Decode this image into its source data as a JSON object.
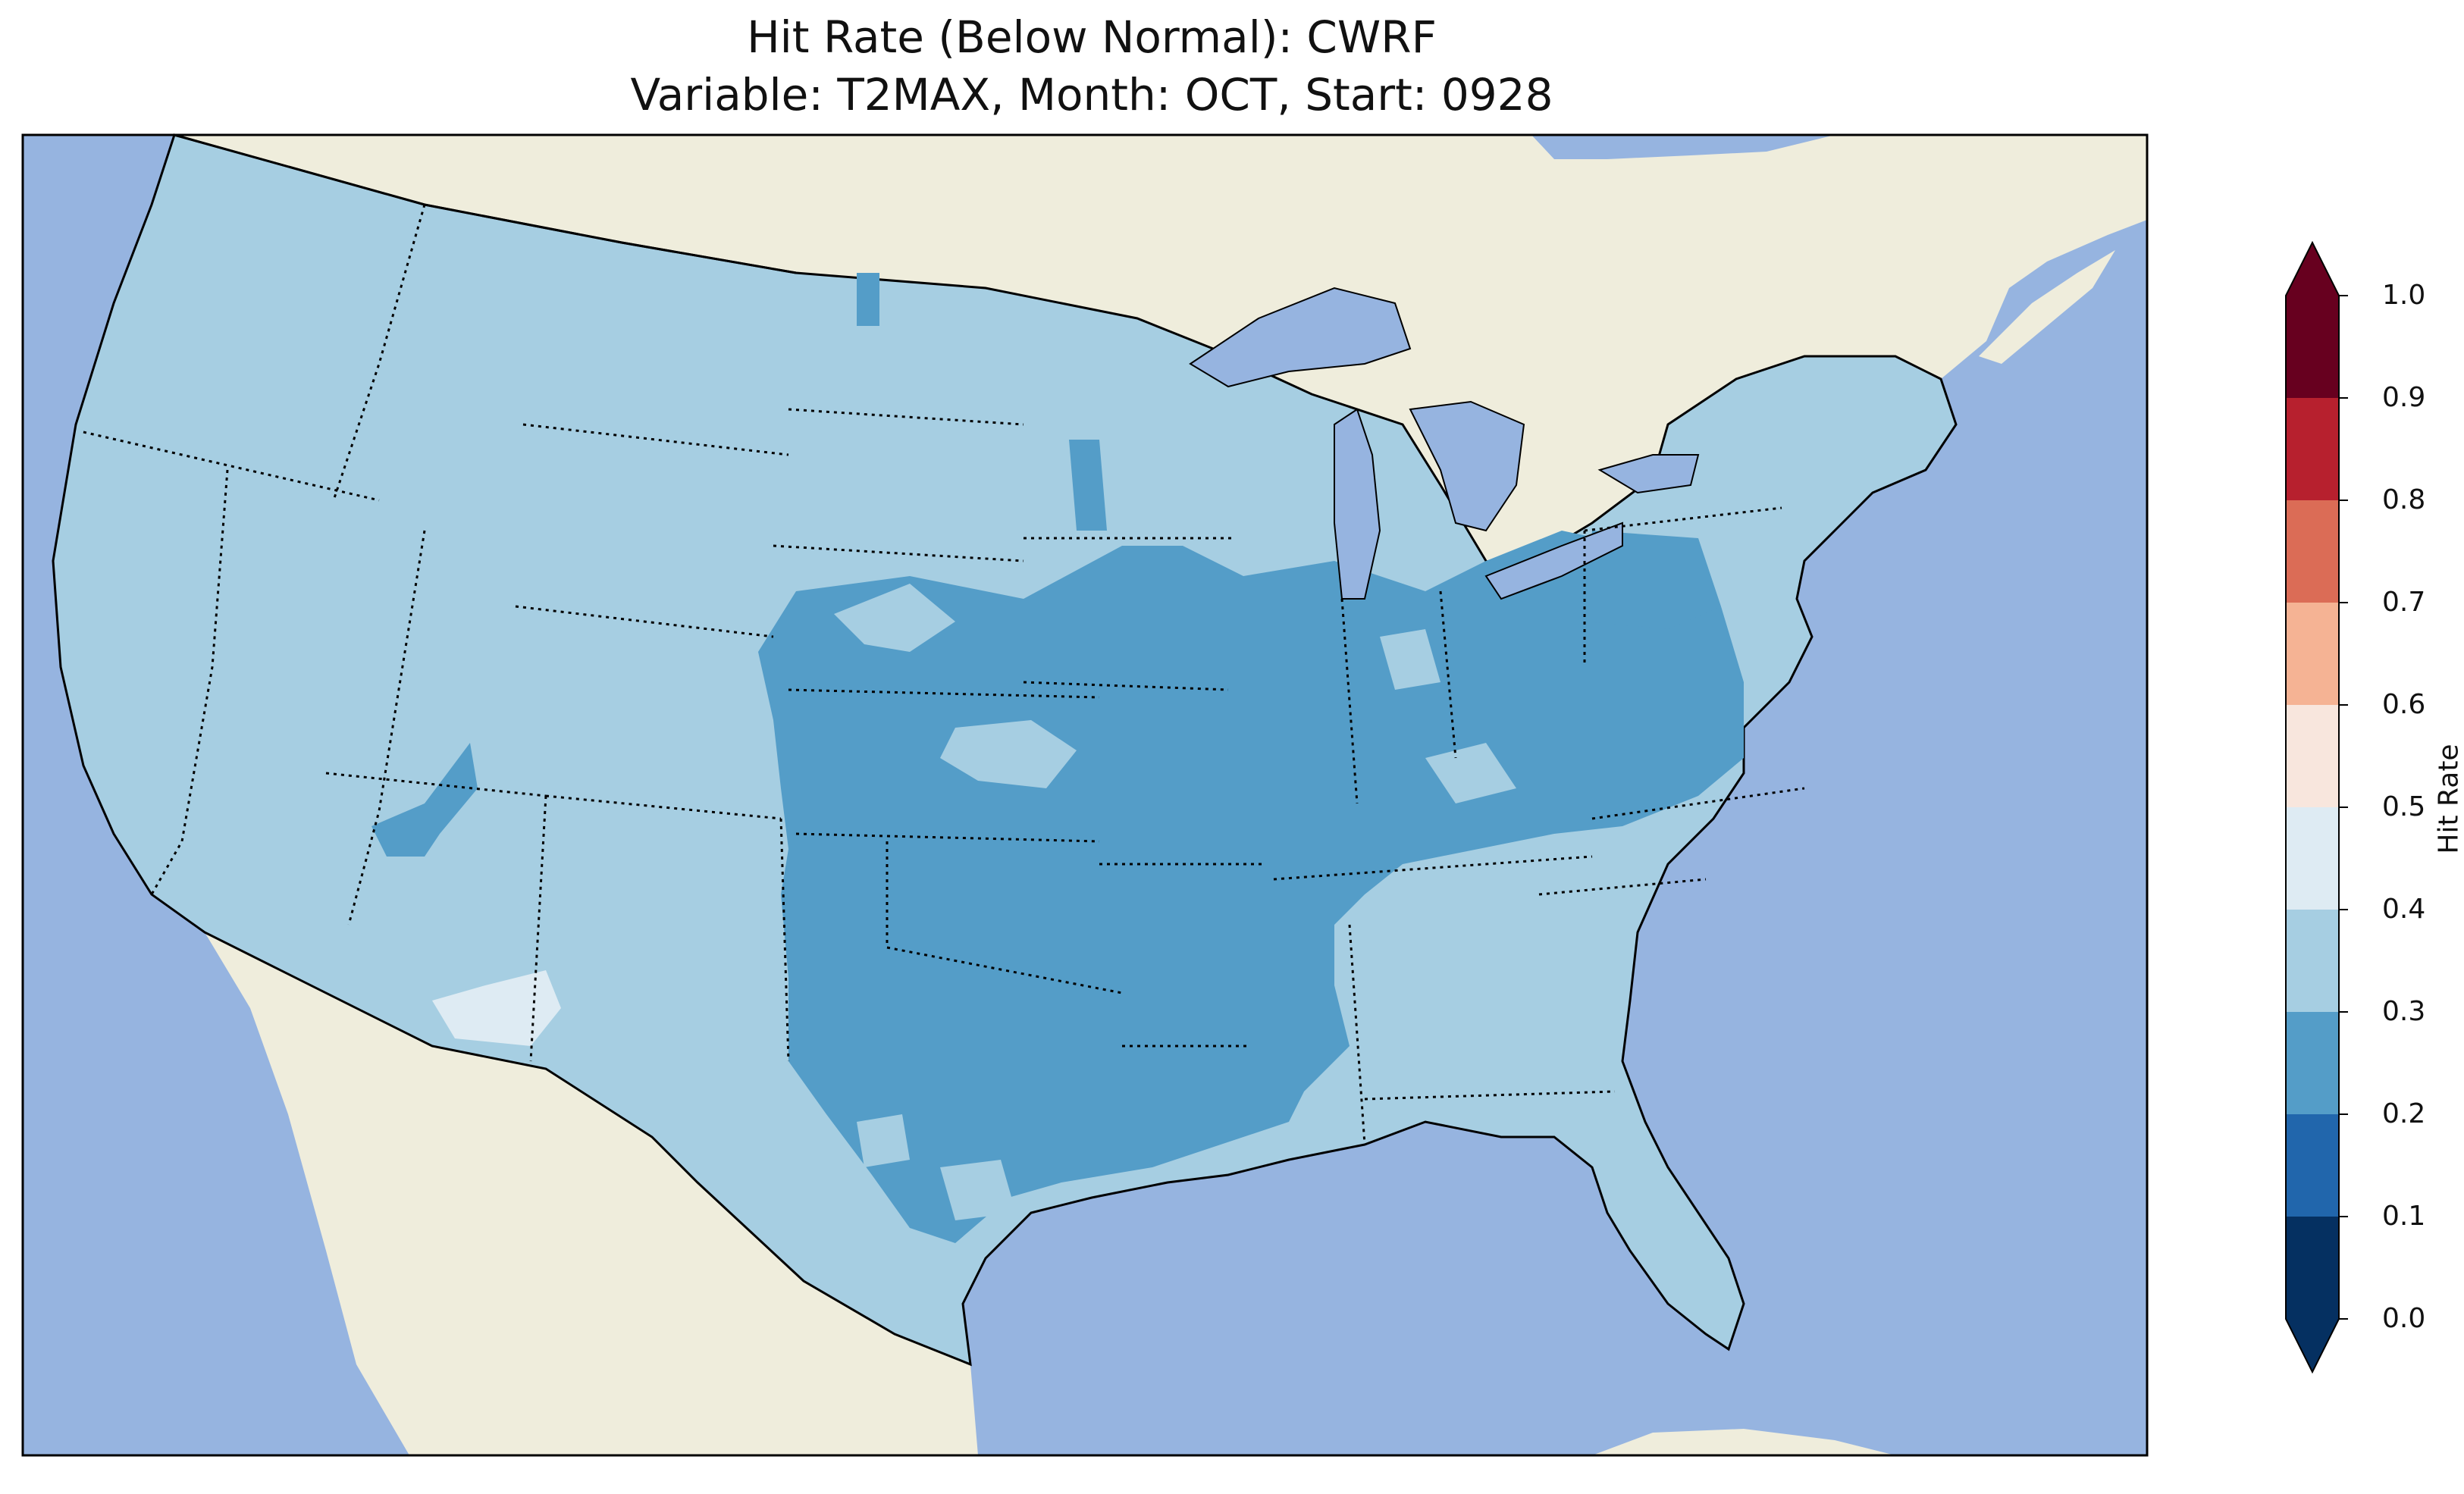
{
  "title_line1": "Hit Rate (Below Normal): CWRF",
  "title_line2": "Variable: T2MAX, Month: OCT, Start: 0928",
  "colors": {
    "ocean": "#96b4e0",
    "land": "#efeddc",
    "lakes": "#96b4e0"
  },
  "colorbar": {
    "label": "Hit Rate",
    "ticks": [
      "0.0",
      "0.1",
      "0.2",
      "0.3",
      "0.4",
      "0.5",
      "0.6",
      "0.7",
      "0.8",
      "0.9",
      "1.0"
    ],
    "bins": [
      {
        "range": "0.0–0.1",
        "color": "#053061"
      },
      {
        "range": "0.1–0.2",
        "color": "#2166ac"
      },
      {
        "range": "0.2–0.3",
        "color": "#549dc8"
      },
      {
        "range": "0.3–0.4",
        "color": "#a6cee2"
      },
      {
        "range": "0.4–0.5",
        "color": "#deebf3"
      },
      {
        "range": "0.5–0.6",
        "color": "#f8e6dd"
      },
      {
        "range": "0.6–0.7",
        "color": "#f5b394"
      },
      {
        "range": "0.7–0.8",
        "color": "#db6c56"
      },
      {
        "range": "0.8–0.9",
        "color": "#b7202e"
      },
      {
        "range": "0.9–1.0",
        "color": "#67001f"
      }
    ],
    "under_color": "#053061",
    "over_color": "#67001f"
  },
  "regions": [
    {
      "name": "CONUS",
      "bin": "0.3–0.4"
    },
    {
      "name": "Central Plains / Midwest / Ohio Valley / Southern Plains / Lower Mississippi",
      "bin": "0.2–0.3"
    },
    {
      "name": "Western Utah",
      "bin": "0.2–0.3"
    },
    {
      "name": "Southern Arizona border",
      "bin": "0.4–0.5"
    }
  ]
}
